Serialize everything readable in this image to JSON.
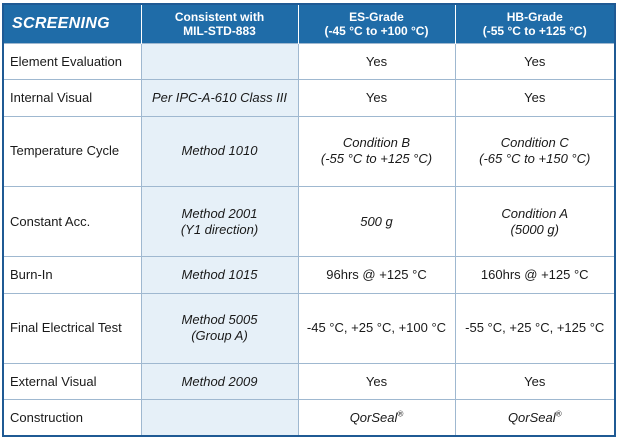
{
  "header": {
    "title": "SCREENING",
    "col2": [
      "Consistent with",
      "MIL-STD-883"
    ],
    "col3": [
      "ES-Grade",
      "(-45 °C to +100 °C)"
    ],
    "col4": [
      "HB-Grade",
      "(-55 °C to +125 °C)"
    ]
  },
  "rows": [
    {
      "label": "Element Evaluation",
      "std": [],
      "es": [
        "Yes"
      ],
      "hb": [
        "Yes"
      ]
    },
    {
      "label": "Internal Visual",
      "std": [
        "Per IPC-A-610 Class III"
      ],
      "es": [
        "Yes"
      ],
      "hb": [
        "Yes"
      ]
    },
    {
      "label": "Temperature Cycle",
      "std": [
        "Method 1010"
      ],
      "es": [
        "Condition B",
        "(-55 °C to +125 °C)"
      ],
      "hb": [
        "Condition C",
        "(-65 °C to +150 °C)"
      ]
    },
    {
      "label": "Constant Acc.",
      "std": [
        "Method 2001",
        "(Y1 direction)"
      ],
      "es": [
        "500 g"
      ],
      "hb": [
        "Condition A",
        "(5000 g)"
      ]
    },
    {
      "label": "Burn-In",
      "std": [
        "Method 1015"
      ],
      "es": [
        "96hrs @ +125 °C"
      ],
      "hb": [
        "160hrs @ +125 °C"
      ]
    },
    {
      "label": "Final Electrical Test",
      "std": [
        "Method 5005",
        "(Group A)"
      ],
      "es": [
        "-45 °C, +25 °C, +100 °C"
      ],
      "hb": [
        "-55 °C, +25 °C, +125 °C"
      ]
    },
    {
      "label": "External Visual",
      "std": [
        "Method 2009"
      ],
      "es": [
        "Yes"
      ],
      "hb": [
        "Yes"
      ]
    },
    {
      "label": "Construction",
      "std": [],
      "es": [
        "QorSeal"
      ],
      "hb": [
        "QorSeal"
      ],
      "mark": "®"
    }
  ]
}
